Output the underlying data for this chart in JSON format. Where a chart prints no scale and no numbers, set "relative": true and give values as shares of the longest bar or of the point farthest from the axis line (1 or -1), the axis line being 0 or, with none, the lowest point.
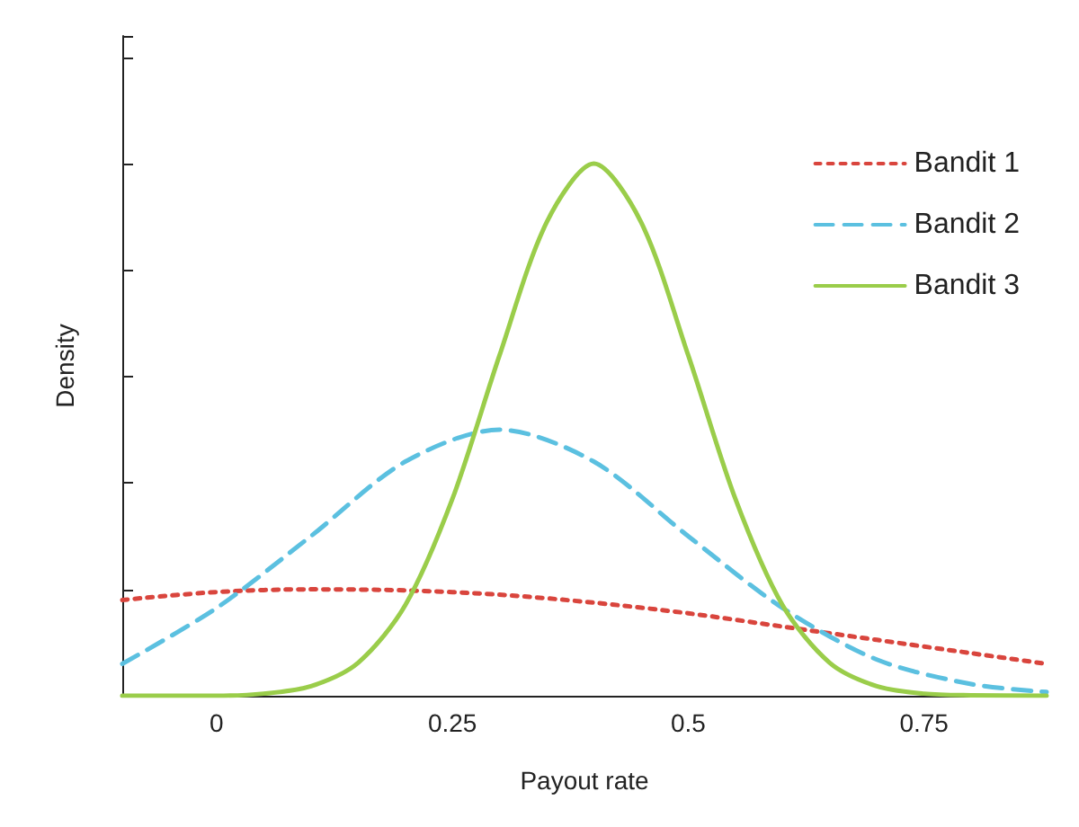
{
  "chart_data": {
    "type": "line",
    "xlabel": "Payout rate",
    "ylabel": "Density",
    "relative": true,
    "xlim": [
      -0.1,
      0.88
    ],
    "xticks": [
      0,
      0.25,
      0.5,
      0.75
    ],
    "grid": false,
    "legend": "top right",
    "marker": "none",
    "series": [
      {
        "name": "Bandit 1",
        "color": "#d9453d",
        "line_style": "dotted",
        "x": [
          -0.1,
          0,
          0.1,
          0.2,
          0.3,
          0.4,
          0.5,
          0.6,
          0.7,
          0.8,
          0.88
        ],
        "values": [
          0.18,
          0.195,
          0.2,
          0.198,
          0.19,
          0.175,
          0.155,
          0.13,
          0.105,
          0.08,
          0.06
        ]
      },
      {
        "name": "Bandit 2",
        "color": "#5bc0e0",
        "line_style": "dashed",
        "x": [
          -0.1,
          0,
          0.1,
          0.2,
          0.3,
          0.4,
          0.5,
          0.6,
          0.7,
          0.8,
          0.88
        ],
        "values": [
          0.06,
          0.165,
          0.3,
          0.44,
          0.5,
          0.44,
          0.3,
          0.165,
          0.068,
          0.022,
          0.007
        ]
      },
      {
        "name": "Bandit 3",
        "color": "#9acd4a",
        "line_style": "solid",
        "x": [
          -0.1,
          0,
          0.05,
          0.1,
          0.15,
          0.2,
          0.25,
          0.3,
          0.35,
          0.4,
          0.45,
          0.5,
          0.55,
          0.6,
          0.65,
          0.7,
          0.75,
          0.8,
          0.88
        ],
        "values": [
          0,
          0,
          0.004,
          0.018,
          0.062,
          0.17,
          0.37,
          0.64,
          0.89,
          1,
          0.89,
          0.64,
          0.37,
          0.17,
          0.062,
          0.018,
          0.004,
          0.001,
          0
        ]
      }
    ]
  }
}
